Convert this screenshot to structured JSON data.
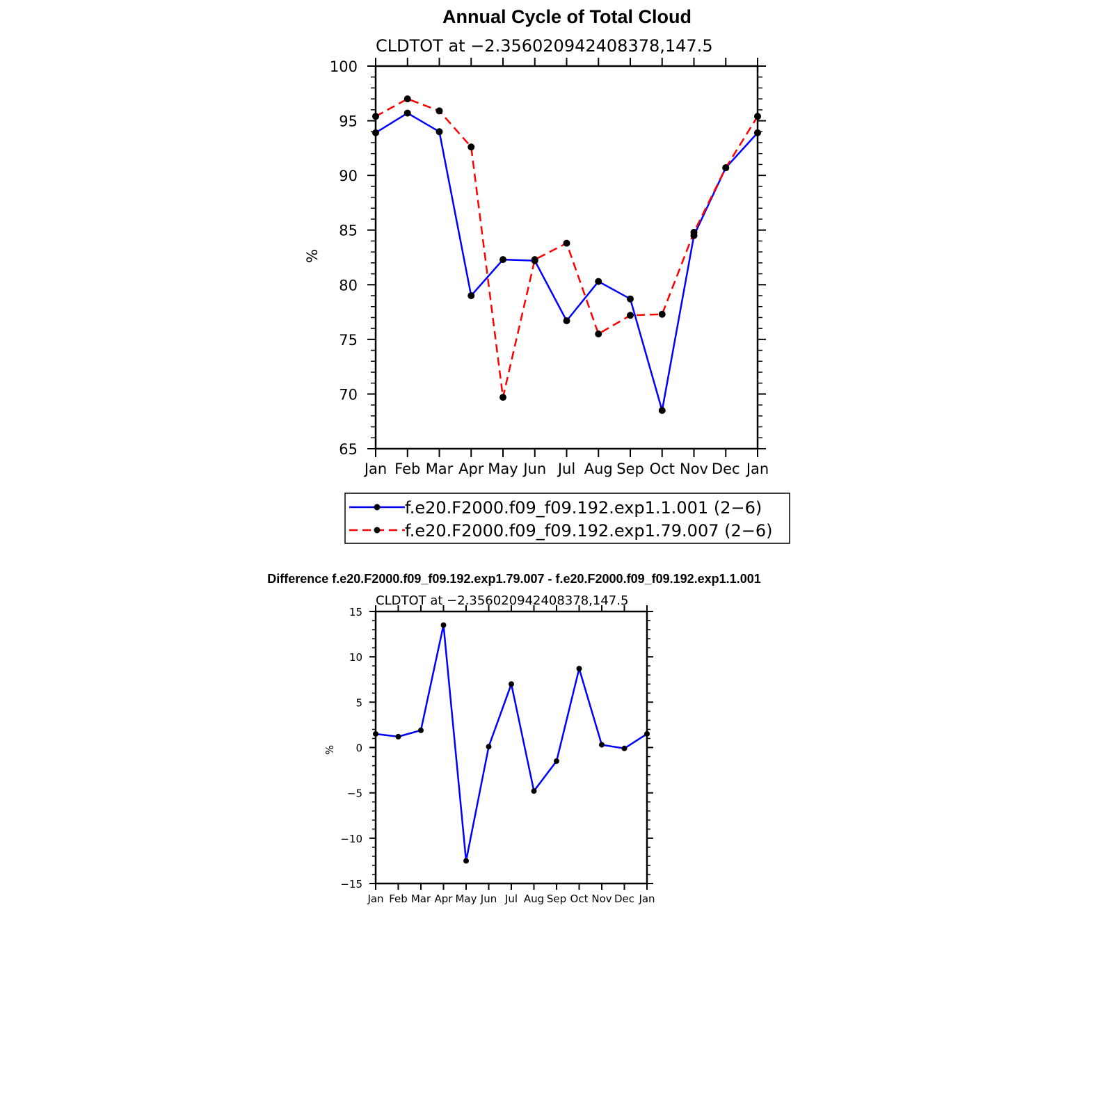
{
  "chart_data": [
    {
      "type": "line",
      "title": "Annual Cycle of Total Cloud",
      "subtitle": "CLDTOT at −2.356020942408378,147.5",
      "xlabel": "",
      "ylabel": "%",
      "categories": [
        "Jan",
        "Feb",
        "Mar",
        "Apr",
        "May",
        "Jun",
        "Jul",
        "Aug",
        "Sep",
        "Oct",
        "Nov",
        "Dec",
        "Jan"
      ],
      "yticks": [
        "100",
        "95",
        "90",
        "85",
        "80",
        "75",
        "70",
        "65"
      ],
      "ylim": [
        65,
        100
      ],
      "grid": false,
      "legend_position": "bottom",
      "series": [
        {
          "name": "f.e20.F2000.f09_f09.192.exp1.1.001 (2−6)",
          "color": "#0000ff",
          "dash": "solid",
          "values": [
            93.9,
            95.7,
            94.0,
            79.0,
            82.3,
            82.2,
            76.7,
            80.3,
            78.7,
            68.5,
            84.5,
            90.7,
            93.9
          ]
        },
        {
          "name": "f.e20.F2000.f09_f09.192.exp1.79.007 (2−6)",
          "color": "#ff0000",
          "dash": "dashed",
          "values": [
            95.4,
            97.0,
            95.9,
            92.6,
            69.7,
            82.3,
            83.8,
            75.5,
            77.2,
            77.3,
            84.8,
            90.7,
            95.4
          ]
        }
      ]
    },
    {
      "type": "line",
      "title": "Difference f.e20.F2000.f09_f09.192.exp1.79.007 - f.e20.F2000.f09_f09.192.exp1.1.001",
      "subtitle": "CLDTOT at −2.356020942408378,147.5",
      "xlabel": "",
      "ylabel": "%",
      "categories": [
        "Jan",
        "Feb",
        "Mar",
        "Apr",
        "May",
        "Jun",
        "Jul",
        "Aug",
        "Sep",
        "Oct",
        "Nov",
        "Dec",
        "Jan"
      ],
      "yticks": [
        "15",
        "10",
        "5",
        "0",
        "−5",
        "−10",
        "−15"
      ],
      "ylim": [
        -15,
        15
      ],
      "grid": false,
      "series": [
        {
          "name": "difference",
          "color": "#0000ff",
          "dash": "solid",
          "values": [
            1.5,
            1.2,
            1.9,
            13.5,
            -12.5,
            0.1,
            7.0,
            -4.8,
            -1.5,
            8.7,
            0.3,
            -0.1,
            1.5
          ]
        }
      ]
    }
  ]
}
